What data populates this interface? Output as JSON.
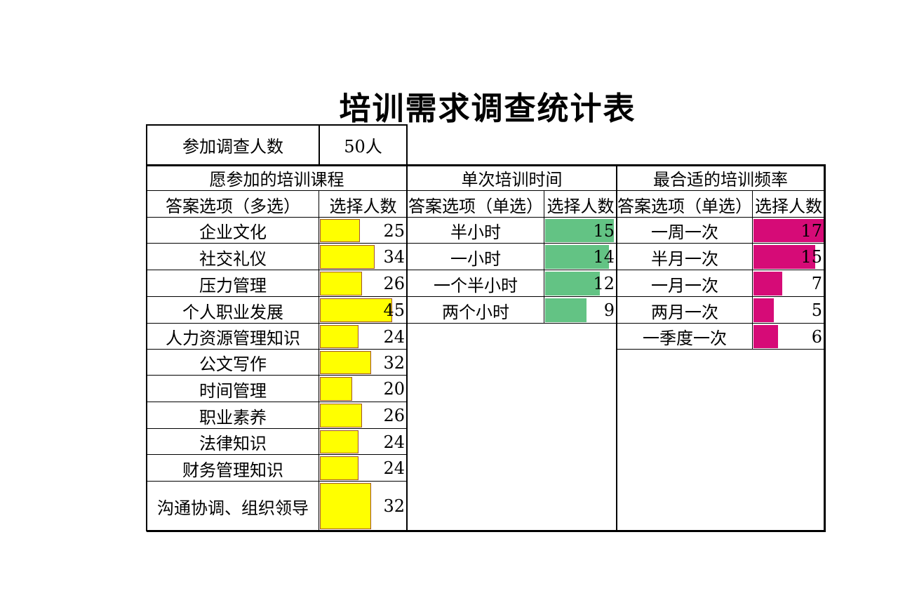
{
  "title": "培训需求调查统计表",
  "participants": {
    "label": "参加调查人数",
    "value": "50人"
  },
  "courses": {
    "header": "愿参加的培训课程",
    "col_option": "答案选项（多选）",
    "col_count": "选择人数",
    "bar_color": "#ffff00",
    "rows": [
      {
        "label": "企业文化",
        "count": 25
      },
      {
        "label": "社交礼仪",
        "count": 34
      },
      {
        "label": "压力管理",
        "count": 26
      },
      {
        "label": "个人职业发展",
        "count": 45
      },
      {
        "label": "人力资源管理知识",
        "count": 24
      },
      {
        "label": "公文写作",
        "count": 32
      },
      {
        "label": "时间管理",
        "count": 20
      },
      {
        "label": "职业素养",
        "count": 26
      },
      {
        "label": "法律知识",
        "count": 24
      },
      {
        "label": "财务管理知识",
        "count": 24
      },
      {
        "label": "沟通协调、组织领导",
        "count": 32
      }
    ]
  },
  "duration": {
    "header": "单次培训时间",
    "col_option": "答案选项（单选）",
    "col_count": "选择人数",
    "bar_color": "#63c384",
    "rows": [
      {
        "label": "半小时",
        "count": 15
      },
      {
        "label": "一小时",
        "count": 14
      },
      {
        "label": "一个半小时",
        "count": 12
      },
      {
        "label": "两个小时",
        "count": 9
      }
    ]
  },
  "frequency": {
    "header": "最合适的培训频率",
    "col_option": "答案选项（单选）",
    "col_count": "选择人数",
    "bar_color": "#d60b77",
    "rows": [
      {
        "label": "一周一次",
        "count": 17
      },
      {
        "label": "半月一次",
        "count": 15
      },
      {
        "label": "一月一次",
        "count": 7
      },
      {
        "label": "两月一次",
        "count": 5
      },
      {
        "label": "一季度一次",
        "count": 6
      }
    ]
  }
}
